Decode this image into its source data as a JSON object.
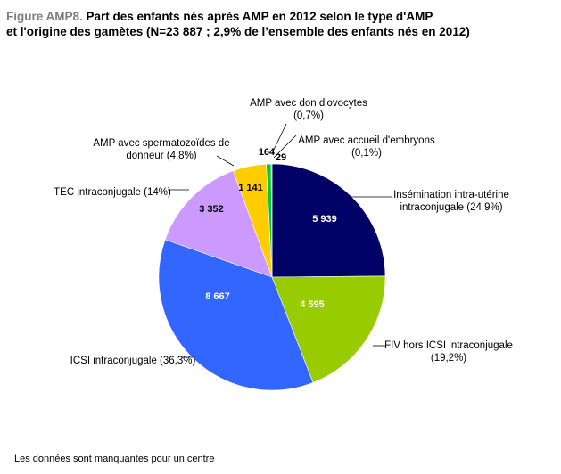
{
  "title": {
    "label": "Figure AMP8.",
    "line1": "Part des enfants nés après AMP en 2012 selon le type d'AMP",
    "line2": "et l'origine des gamètes (N=23 887 ; 2,9% de l’ensemble des enfants nés en 2012)"
  },
  "footnote": "Les données sont manquantes pour un centre",
  "chart_data": {
    "type": "pie",
    "total": "23 887",
    "slices": [
      {
        "name": "Insémination intra-utérine intraconjugale",
        "value": 5939,
        "value_label": "5 939",
        "label_lines": [
          "Insémination intra-utérine",
          "intraconjugale (24,9%)"
        ],
        "percent": "24,9%",
        "color": "#000066"
      },
      {
        "name": "FIV hors ICSI intraconjugale",
        "value": 4595,
        "value_label": "4 595",
        "label_lines": [
          "FIV hors ICSI intraconjugale",
          "(19,2%)"
        ],
        "percent": "19,2%",
        "color": "#99cc00"
      },
      {
        "name": "ICSI intraconjugale",
        "value": 8667,
        "value_label": "8  667",
        "label_lines": [
          "ICSI intraconjugale (36,3%)"
        ],
        "percent": "36,3%",
        "color": "#3366ff"
      },
      {
        "name": "TEC intraconjugale",
        "value": 3352,
        "value_label": "3 352",
        "label_lines": [
          "TEC intraconjugale (14%)"
        ],
        "percent": "14%",
        "color": "#cc99ff"
      },
      {
        "name": "AMP avec spermatozoïdes de donneur",
        "value": 1141,
        "value_label": "1 141",
        "label_lines": [
          "AMP avec spermatozoïdes de",
          "donneur (4,8%)"
        ],
        "percent": "4,8%",
        "color": "#ffcc00"
      },
      {
        "name": "AMP avec don d'ovocytes",
        "value": 164,
        "value_label": "164",
        "label_lines": [
          "AMP avec don d'ovocytes",
          "(0,7%)"
        ],
        "percent": "0,7%",
        "color": "#00cc33"
      },
      {
        "name": "AMP avec accueil d'embryons",
        "value": 29,
        "value_label": "29",
        "label_lines": [
          "AMP avec accueil d'embryons",
          "(0,1%)"
        ],
        "percent": "0,1%",
        "color": "#33cccc"
      }
    ]
  }
}
